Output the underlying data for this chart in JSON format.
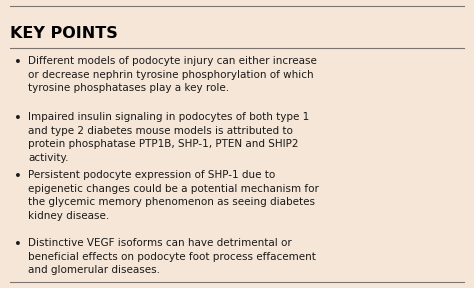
{
  "background_color": "#f5e6d8",
  "border_color": "#555555",
  "title": "KEY POINTS",
  "title_fontsize": 11.5,
  "title_bold": true,
  "title_color": "#000000",
  "body_fontsize": 7.5,
  "body_color": "#1a1a1a",
  "bullet_points": [
    "Different models of podocyte injury can either increase\nor decrease nephrin tyrosine phosphorylation of which\ntyrosine phosphatases play a key role.",
    "Impaired insulin signaling in podocytes of both type 1\nand type 2 diabetes mouse models is attributed to\nprotein phosphatase PTP1B, SHP-1, PTEN and SHIP2\nactivity.",
    "Persistent podocyte expression of SHP-1 due to\nepigenetic changes could be a potential mechanism for\nthe glycemic memory phenomenon as seeing diabetes\nkidney disease.",
    "Distinctive VEGF isoforms can have detrimental or\nbeneficial effects on podocyte foot process effacement\nand glomerular diseases."
  ],
  "bullet_char": "•",
  "separator_color": "#777777",
  "separator_linewidth": 0.8,
  "fig_width": 4.74,
  "fig_height": 2.88,
  "dpi": 100
}
